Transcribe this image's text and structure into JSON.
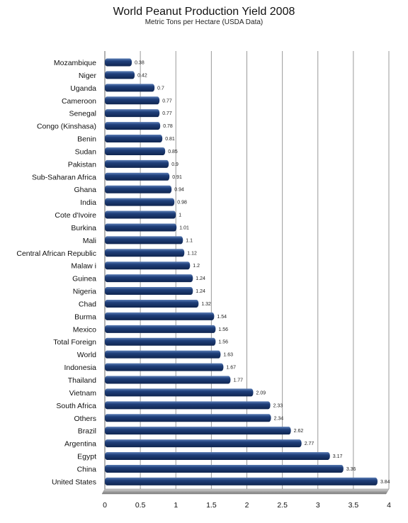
{
  "chart_data": {
    "type": "bar",
    "orientation": "horizontal",
    "title": "World Peanut Production Yield 2008",
    "subtitle": "Metric Tons per Hectare (USDA Data)",
    "categories": [
      "Mozambique",
      "Niger",
      "Uganda",
      "Cameroon",
      "Senegal",
      "Congo (Kinshasa)",
      "Benin",
      "Sudan",
      "Pakistan",
      "Sub-Saharan Africa",
      "Ghana",
      "India",
      "Cote d'Ivoire",
      "Burkina",
      "Mali",
      "Central African Republic",
      "Malaw i",
      "Guinea",
      "Nigeria",
      "Chad",
      "Burma",
      "Mexico",
      "Total Foreign",
      "World",
      "Indonesia",
      "Thailand",
      "Vietnam",
      "South Africa",
      "Others",
      "Brazil",
      "Argentina",
      "Egypt",
      "China",
      "United States"
    ],
    "values": [
      0.38,
      0.42,
      0.7,
      0.77,
      0.77,
      0.78,
      0.81,
      0.85,
      0.9,
      0.91,
      0.94,
      0.98,
      1,
      1.01,
      1.1,
      1.12,
      1.2,
      1.24,
      1.24,
      1.32,
      1.54,
      1.56,
      1.56,
      1.63,
      1.67,
      1.77,
      2.09,
      2.33,
      2.34,
      2.62,
      2.77,
      3.17,
      3.36,
      3.84
    ],
    "value_labels": [
      "0.38",
      "0.42",
      "0.7",
      "0.77",
      "0.77",
      "0.78",
      "0.81",
      "0.85",
      "0.9",
      "0.91",
      "0.94",
      "0.98",
      "1",
      "1.01",
      "1.1",
      "1.12",
      "1.2",
      "1.24",
      "1.24",
      "1.32",
      "1.54",
      "1.56",
      "1.56",
      "1.63",
      "1.67",
      "1.77",
      "2.09",
      "2.33",
      "2.34",
      "2.62",
      "2.77",
      "3.17",
      "3.36",
      "3.84"
    ],
    "xlim": [
      0,
      4
    ],
    "xticks": [
      "0",
      "0.5",
      "1",
      "1.5",
      "2",
      "2.5",
      "3",
      "3.5",
      "4"
    ],
    "grid": true,
    "bar_color": "#1f3f7a",
    "grid_color": "#9a9a9a",
    "floor_color": "#9c9c9c"
  }
}
